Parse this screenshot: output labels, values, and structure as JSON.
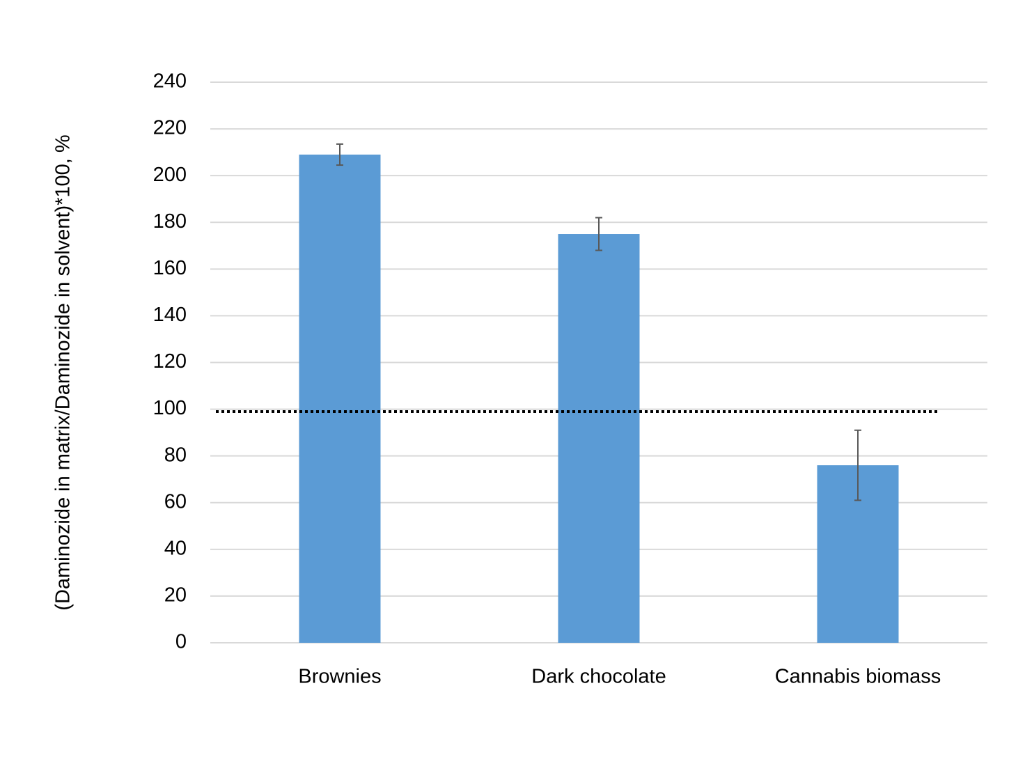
{
  "chart_data": {
    "type": "bar",
    "y_label": "(Daminozide in matrix/Daminozide in solvent)*100, %",
    "categories": [
      "Brownies",
      "Dark chocolate",
      "Cannabis biomass"
    ],
    "values": [
      209,
      175,
      76
    ],
    "error": [
      4.5,
      7,
      15
    ],
    "color": "#5b9bd5",
    "reference_value": 99,
    "ylim": [
      0,
      240
    ],
    "yticks": [
      0,
      20,
      40,
      60,
      80,
      100,
      120,
      140,
      160,
      180,
      200,
      220,
      240
    ],
    "grid": true
  }
}
